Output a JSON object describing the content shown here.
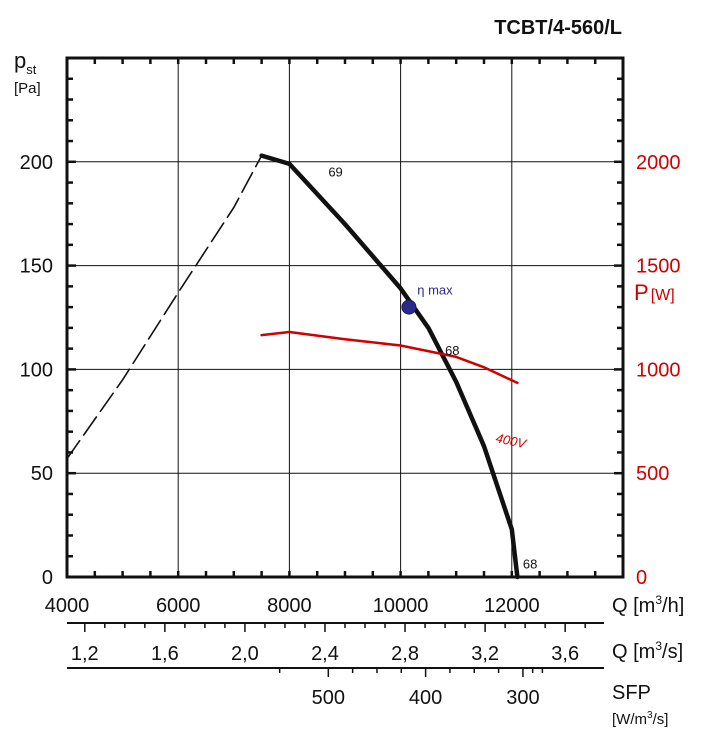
{
  "chart_data": {
    "type": "line",
    "title": "TCBT/4-560/L",
    "y_label": {
      "main": "p",
      "sub": "st",
      "unit": "[Pa]"
    },
    "y_ticks": [
      0,
      50,
      100,
      150,
      200
    ],
    "y_range": [
      0,
      250
    ],
    "y2_label": {
      "main": "P",
      "unit": "[W]"
    },
    "y2_ticks": [
      0,
      500,
      1000,
      1500,
      2000
    ],
    "y2_range": [
      0,
      2500
    ],
    "x_range": [
      4000,
      14000
    ],
    "x_label": "Q [m3/h]",
    "x_label_parts": {
      "main": "Q [m",
      "sup": "3",
      "tail": "/h]"
    },
    "x_ticks": [
      4000,
      6000,
      8000,
      10000,
      12000
    ],
    "x2_label_parts": {
      "main": "Q [m",
      "sup": "3",
      "tail": "/s]"
    },
    "x2_ticks": [
      "1,2",
      "1,6",
      "2,0",
      "2,4",
      "2,8",
      "3,2",
      "3,6"
    ],
    "sfp_label": "SFP",
    "sfp_unit_parts": {
      "main": "[W/m",
      "sup": "3",
      "tail": "/s]"
    },
    "sfp_ticks": [
      "500",
      "400",
      "300"
    ],
    "series": [
      {
        "name": "pressure_unstable",
        "style": "dashed",
        "color": "#111111",
        "x": [
          4000,
          5000,
          6000,
          7000,
          7500
        ],
        "y": [
          57,
          95,
          137,
          178,
          203
        ]
      },
      {
        "name": "pressure",
        "style": "solid",
        "color": "#111111",
        "x": [
          7500,
          8000,
          9000,
          10000,
          10500,
          11000,
          11500,
          12000,
          12100
        ],
        "y": [
          203,
          199,
          170,
          139,
          120,
          94,
          63,
          23,
          0
        ]
      },
      {
        "name": "400V",
        "axis": "right",
        "color": "#d00000",
        "x": [
          7500,
          8000,
          9000,
          10000,
          11000,
          11500,
          12100
        ],
        "y": [
          1165,
          1180,
          1145,
          1115,
          1060,
          1010,
          935
        ]
      }
    ],
    "annotations": [
      {
        "text": "69",
        "x": 8700,
        "y": 193
      },
      {
        "text": "68",
        "x": 10800,
        "y": 107
      },
      {
        "text": "68",
        "x": 12200,
        "y": 4
      },
      {
        "text": "η max",
        "x": 10300,
        "y": 136
      },
      {
        "text": "400V",
        "x": 11700,
        "y": 65
      }
    ],
    "eta_max_point": {
      "x": 10150,
      "y": 130
    }
  }
}
